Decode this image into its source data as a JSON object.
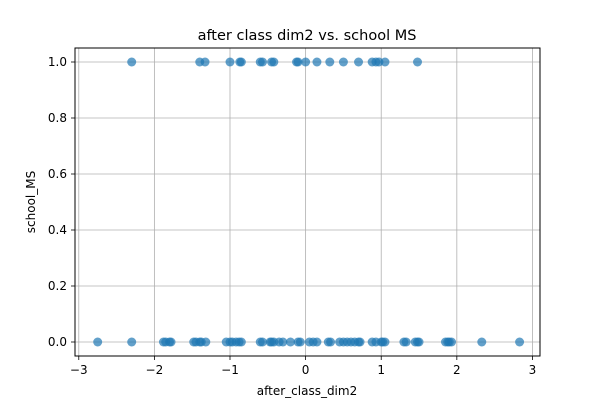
{
  "chart_data": {
    "type": "scatter",
    "title": "after class dim2 vs. school MS",
    "xlabel": "after_class_dim2",
    "ylabel": "school_MS",
    "xlim": [
      -3.05,
      3.1
    ],
    "ylim": [
      -0.05,
      1.05
    ],
    "x_ticks": [
      -3,
      -2,
      -1,
      0,
      1,
      2,
      3
    ],
    "x_tick_labels": [
      "−3",
      "−2",
      "−1",
      "0",
      "1",
      "2",
      "3"
    ],
    "y_ticks": [
      0.0,
      0.2,
      0.4,
      0.6,
      0.8,
      1.0
    ],
    "y_tick_labels": [
      "0.0",
      "0.2",
      "0.4",
      "0.6",
      "0.8",
      "1.0"
    ],
    "grid": true,
    "point_color": "#1f77b4",
    "point_alpha": 0.7,
    "series": [
      {
        "points": [
          {
            "x": -2.3,
            "y": 1
          },
          {
            "x": -1.4,
            "y": 1
          },
          {
            "x": -1.33,
            "y": 1
          },
          {
            "x": -1.0,
            "y": 1
          },
          {
            "x": -0.87,
            "y": 1
          },
          {
            "x": -0.85,
            "y": 1
          },
          {
            "x": -0.6,
            "y": 1
          },
          {
            "x": -0.57,
            "y": 1
          },
          {
            "x": -0.45,
            "y": 1
          },
          {
            "x": -0.42,
            "y": 1
          },
          {
            "x": -0.12,
            "y": 1
          },
          {
            "x": -0.1,
            "y": 1
          },
          {
            "x": 0.0,
            "y": 1
          },
          {
            "x": 0.15,
            "y": 1
          },
          {
            "x": 0.32,
            "y": 1
          },
          {
            "x": 0.5,
            "y": 1
          },
          {
            "x": 0.7,
            "y": 1
          },
          {
            "x": 0.88,
            "y": 1
          },
          {
            "x": 0.93,
            "y": 1
          },
          {
            "x": 0.97,
            "y": 1
          },
          {
            "x": 1.05,
            "y": 1
          },
          {
            "x": 1.48,
            "y": 1
          },
          {
            "x": -2.75,
            "y": 0
          },
          {
            "x": -2.3,
            "y": 0
          },
          {
            "x": -1.88,
            "y": 0
          },
          {
            "x": -1.85,
            "y": 0
          },
          {
            "x": -1.8,
            "y": 0
          },
          {
            "x": -1.78,
            "y": 0
          },
          {
            "x": -1.48,
            "y": 0
          },
          {
            "x": -1.45,
            "y": 0
          },
          {
            "x": -1.4,
            "y": 0
          },
          {
            "x": -1.38,
            "y": 0
          },
          {
            "x": -1.32,
            "y": 0
          },
          {
            "x": -1.05,
            "y": 0
          },
          {
            "x": -1.0,
            "y": 0
          },
          {
            "x": -0.97,
            "y": 0
          },
          {
            "x": -0.92,
            "y": 0
          },
          {
            "x": -0.88,
            "y": 0
          },
          {
            "x": -0.85,
            "y": 0
          },
          {
            "x": -0.6,
            "y": 0
          },
          {
            "x": -0.57,
            "y": 0
          },
          {
            "x": -0.47,
            "y": 0
          },
          {
            "x": -0.45,
            "y": 0
          },
          {
            "x": -0.42,
            "y": 0
          },
          {
            "x": -0.35,
            "y": 0
          },
          {
            "x": -0.3,
            "y": 0
          },
          {
            "x": -0.2,
            "y": 0
          },
          {
            "x": -0.1,
            "y": 0
          },
          {
            "x": -0.07,
            "y": 0
          },
          {
            "x": 0.05,
            "y": 0
          },
          {
            "x": 0.1,
            "y": 0
          },
          {
            "x": 0.15,
            "y": 0
          },
          {
            "x": 0.3,
            "y": 0
          },
          {
            "x": 0.33,
            "y": 0
          },
          {
            "x": 0.45,
            "y": 0
          },
          {
            "x": 0.5,
            "y": 0
          },
          {
            "x": 0.55,
            "y": 0
          },
          {
            "x": 0.6,
            "y": 0
          },
          {
            "x": 0.65,
            "y": 0
          },
          {
            "x": 0.7,
            "y": 0
          },
          {
            "x": 0.72,
            "y": 0
          },
          {
            "x": 0.88,
            "y": 0
          },
          {
            "x": 0.93,
            "y": 0
          },
          {
            "x": 1.0,
            "y": 0
          },
          {
            "x": 1.02,
            "y": 0
          },
          {
            "x": 1.05,
            "y": 0
          },
          {
            "x": 1.3,
            "y": 0
          },
          {
            "x": 1.33,
            "y": 0
          },
          {
            "x": 1.45,
            "y": 0
          },
          {
            "x": 1.48,
            "y": 0
          },
          {
            "x": 1.5,
            "y": 0
          },
          {
            "x": 1.85,
            "y": 0
          },
          {
            "x": 1.88,
            "y": 0
          },
          {
            "x": 1.9,
            "y": 0
          },
          {
            "x": 1.93,
            "y": 0
          },
          {
            "x": 2.33,
            "y": 0
          },
          {
            "x": 2.83,
            "y": 0
          }
        ]
      }
    ]
  }
}
